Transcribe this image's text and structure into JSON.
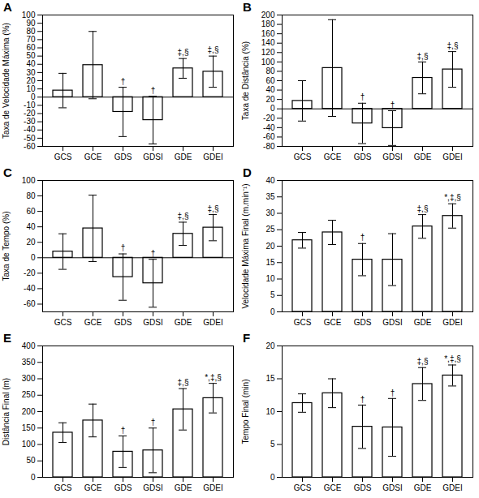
{
  "chart_data": [
    {
      "type": "bar",
      "title": "A",
      "y_label": "Taxa de Velocidade Máxima (%)",
      "categories": [
        "GCS",
        "GCE",
        "GDS",
        "GDSI",
        "GDE",
        "GDEI"
      ],
      "values": [
        8,
        39,
        -18,
        -28,
        35,
        31
      ],
      "errors": [
        21,
        41,
        30,
        29,
        12,
        19
      ],
      "annotations": [
        null,
        null,
        "†",
        "†",
        "‡,§",
        "‡,§"
      ],
      "ylim": [
        -60,
        100
      ],
      "yticks": [
        -60,
        -50,
        -40,
        -30,
        -20,
        -10,
        0,
        10,
        20,
        30,
        40,
        50,
        60,
        70,
        80,
        90,
        100
      ]
    },
    {
      "type": "bar",
      "title": "B",
      "y_label": "Taxa de Distância (%)",
      "categories": [
        "GCS",
        "GCE",
        "GDS",
        "GDSI",
        "GDE",
        "GDEI"
      ],
      "values": [
        17,
        87,
        -31,
        -41,
        66,
        84
      ],
      "errors": [
        43,
        103,
        43,
        37,
        34,
        38
      ],
      "annotations": [
        null,
        null,
        "†",
        "†",
        "‡,§",
        "‡,§"
      ],
      "ylim": [
        -80,
        200
      ],
      "yticks": [
        -80,
        -60,
        -40,
        -20,
        0,
        20,
        40,
        60,
        80,
        100,
        120,
        140,
        160,
        180,
        200
      ]
    },
    {
      "type": "bar",
      "title": "C",
      "y_label": "Taxa de Tempo (%)",
      "categories": [
        "GCS",
        "GCE",
        "GDS",
        "GDSI",
        "GDE",
        "GDEI"
      ],
      "values": [
        8,
        38,
        -25,
        -33,
        31,
        39
      ],
      "errors": [
        23,
        43,
        30,
        31,
        15,
        17
      ],
      "annotations": [
        null,
        null,
        "†",
        "†",
        "‡,§",
        "‡,§"
      ],
      "ylim": [
        -70,
        100
      ],
      "yticks": [
        -60,
        -40,
        -20,
        0,
        20,
        40,
        60,
        80,
        100
      ]
    },
    {
      "type": "bar",
      "title": "D",
      "y_label": "Velocidade Máxima Final (m.min⁻¹)",
      "categories": [
        "GCS",
        "GCE",
        "GDS",
        "GDSI",
        "GDE",
        "GDEI"
      ],
      "values": [
        21.8,
        24.2,
        15.9,
        15.9,
        26,
        29.2
      ],
      "errors": [
        2.4,
        3.7,
        4.9,
        7.9,
        3.6,
        3.7
      ],
      "annotations": [
        null,
        null,
        "†",
        null,
        "‡,§",
        "*,‡,§"
      ],
      "ylim": [
        0,
        40
      ],
      "yticks": [
        0,
        5,
        10,
        15,
        20,
        25,
        30,
        35,
        40
      ]
    },
    {
      "type": "bar",
      "title": "E",
      "y_label": "Distância Final (m)",
      "categories": [
        "GCS",
        "GCE",
        "GDS",
        "GDSI",
        "GDE",
        "GDEI"
      ],
      "values": [
        136,
        173,
        78,
        82,
        207,
        241
      ],
      "errors": [
        30,
        50,
        48,
        68,
        63,
        45
      ],
      "annotations": [
        null,
        null,
        "†",
        "†",
        "‡,§",
        "*,‡,§"
      ],
      "ylim": [
        0,
        400
      ],
      "yticks": [
        0,
        50,
        100,
        150,
        200,
        250,
        300,
        350,
        400
      ]
    },
    {
      "type": "bar",
      "title": "F",
      "y_label": "Tempo Final (min)",
      "categories": [
        "GCS",
        "GCE",
        "GDS",
        "GDSI",
        "GDE",
        "GDEI"
      ],
      "values": [
        11.3,
        12.8,
        7.7,
        7.6,
        14.2,
        15.5
      ],
      "errors": [
        1.4,
        2.2,
        3.3,
        4.4,
        2.5,
        1.6
      ],
      "annotations": [
        null,
        null,
        "†",
        "†",
        "‡,§",
        "*,‡,§"
      ],
      "ylim": [
        0,
        20
      ],
      "yticks": [
        0,
        5,
        10,
        15,
        20
      ]
    }
  ]
}
